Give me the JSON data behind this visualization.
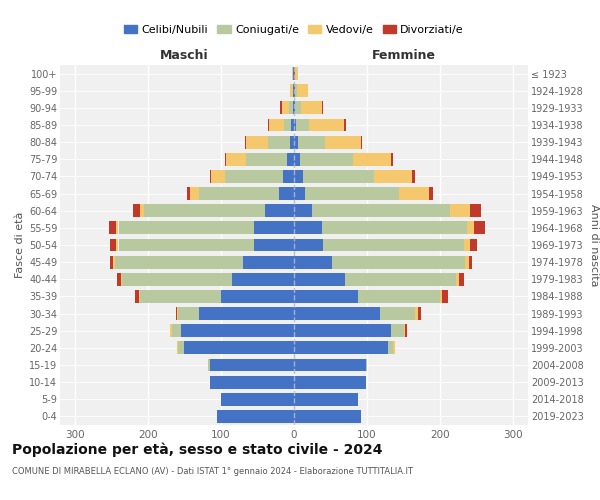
{
  "age_groups": [
    "0-4",
    "5-9",
    "10-14",
    "15-19",
    "20-24",
    "25-29",
    "30-34",
    "35-39",
    "40-44",
    "45-49",
    "50-54",
    "55-59",
    "60-64",
    "65-69",
    "70-74",
    "75-79",
    "80-84",
    "85-89",
    "90-94",
    "95-99",
    "100+"
  ],
  "birth_years": [
    "2019-2023",
    "2014-2018",
    "2009-2013",
    "2004-2008",
    "1999-2003",
    "1994-1998",
    "1989-1993",
    "1984-1988",
    "1979-1983",
    "1974-1978",
    "1969-1973",
    "1964-1968",
    "1959-1963",
    "1954-1958",
    "1949-1953",
    "1944-1948",
    "1939-1943",
    "1934-1938",
    "1929-1933",
    "1924-1928",
    "≤ 1923"
  ],
  "colors": {
    "celibi": "#4472c4",
    "coniugati": "#b8c9a0",
    "vedovi": "#f5c86e",
    "divorziati": "#c0392b"
  },
  "males": {
    "celibi": [
      105,
      100,
      115,
      115,
      150,
      155,
      130,
      100,
      85,
      70,
      55,
      55,
      40,
      20,
      15,
      10,
      5,
      4,
      2,
      1,
      1
    ],
    "coniugati": [
      0,
      0,
      0,
      2,
      8,
      12,
      28,
      110,
      150,
      175,
      185,
      185,
      165,
      110,
      80,
      55,
      30,
      10,
      5,
      0,
      0
    ],
    "vedovi": [
      0,
      0,
      0,
      0,
      2,
      2,
      2,
      2,
      2,
      2,
      3,
      3,
      5,
      12,
      18,
      28,
      30,
      20,
      10,
      5,
      2
    ],
    "divorziati": [
      0,
      0,
      0,
      0,
      0,
      0,
      2,
      5,
      5,
      5,
      8,
      10,
      10,
      5,
      2,
      2,
      2,
      2,
      2,
      0,
      0
    ]
  },
  "females": {
    "celibi": [
      92,
      88,
      98,
      98,
      128,
      132,
      118,
      88,
      70,
      52,
      40,
      38,
      25,
      15,
      12,
      8,
      5,
      3,
      2,
      1,
      1
    ],
    "coniugati": [
      0,
      0,
      0,
      2,
      8,
      18,
      48,
      112,
      152,
      182,
      192,
      198,
      188,
      128,
      98,
      72,
      38,
      18,
      8,
      3,
      0
    ],
    "vedovi": [
      0,
      0,
      0,
      0,
      2,
      2,
      3,
      3,
      3,
      5,
      8,
      10,
      28,
      42,
      52,
      52,
      48,
      48,
      28,
      15,
      4
    ],
    "divorziati": [
      0,
      0,
      0,
      0,
      0,
      2,
      5,
      8,
      8,
      5,
      10,
      15,
      15,
      5,
      3,
      3,
      2,
      2,
      2,
      0,
      0
    ]
  },
  "xlim": 320,
  "title": "Popolazione per età, sesso e stato civile - 2024",
  "subtitle": "COMUNE DI MIRABELLA ECLANO (AV) - Dati ISTAT 1° gennaio 2024 - Elaborazione TUTTITALIA.IT",
  "xlabel_left": "Maschi",
  "xlabel_right": "Femmine",
  "ylabel_left": "Fasce di età",
  "ylabel_right": "Anni di nascita",
  "legend_labels": [
    "Celibi/Nubili",
    "Coniugati/e",
    "Vedovi/e",
    "Divorziati/e"
  ],
  "background_color": "#ffffff",
  "bar_height": 0.75
}
